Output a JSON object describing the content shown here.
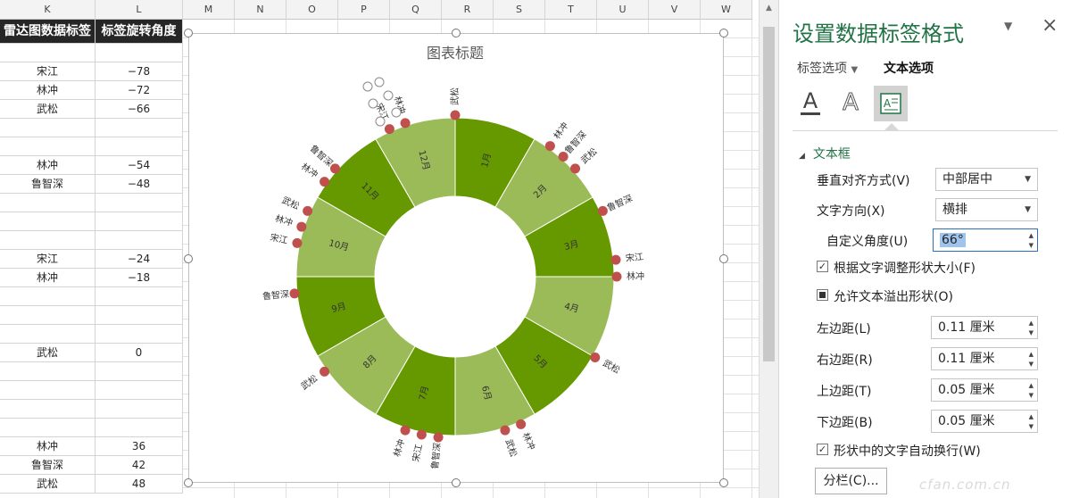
{
  "sheet": {
    "columns": [
      "K",
      "L",
      "M",
      "N",
      "O",
      "P",
      "Q",
      "R",
      "S",
      "T",
      "U",
      "V",
      "W"
    ],
    "header_k": "雷达图数据标签",
    "header_l": "标签旋转角度",
    "rows": [
      {
        "k": "",
        "l": ""
      },
      {
        "k": "宋江",
        "l": "−78"
      },
      {
        "k": "林冲",
        "l": "−72"
      },
      {
        "k": "武松",
        "l": "−66"
      },
      {
        "k": "",
        "l": ""
      },
      {
        "k": "",
        "l": ""
      },
      {
        "k": "林冲",
        "l": "−54"
      },
      {
        "k": "鲁智深",
        "l": "−48"
      },
      {
        "k": "",
        "l": ""
      },
      {
        "k": "",
        "l": ""
      },
      {
        "k": "",
        "l": ""
      },
      {
        "k": "宋江",
        "l": "−24"
      },
      {
        "k": "林冲",
        "l": "−18"
      },
      {
        "k": "",
        "l": ""
      },
      {
        "k": "",
        "l": ""
      },
      {
        "k": "",
        "l": ""
      },
      {
        "k": "武松",
        "l": "0"
      },
      {
        "k": "",
        "l": ""
      },
      {
        "k": "",
        "l": ""
      },
      {
        "k": "",
        "l": ""
      },
      {
        "k": "",
        "l": ""
      },
      {
        "k": "林冲",
        "l": "36"
      },
      {
        "k": "鲁智深",
        "l": "42"
      },
      {
        "k": "武松",
        "l": "48"
      }
    ]
  },
  "chart": {
    "title": "图表标题",
    "months": [
      "1月",
      "2月",
      "3月",
      "4月",
      "5月",
      "6月",
      "7月",
      "8月",
      "9月",
      "10月",
      "11月",
      "12月"
    ],
    "colors": {
      "dark": "#669900",
      "light": "#9bbb59",
      "dot": "#c0504d"
    },
    "labels": [
      {
        "text": "宋江",
        "deg": -78
      },
      {
        "text": "林冲",
        "deg": -72
      },
      {
        "text": "武松",
        "deg": -66
      },
      {
        "text": "林冲",
        "deg": -54
      },
      {
        "text": "鲁智深",
        "deg": -48
      },
      {
        "text": "宋江",
        "deg": -24
      },
      {
        "text": "林冲",
        "deg": -18
      },
      {
        "text": "武松",
        "deg": 0
      },
      {
        "text": "林冲",
        "deg": 36
      },
      {
        "text": "鲁智深",
        "deg": 42
      },
      {
        "text": "武松",
        "deg": 48
      },
      {
        "text": "鲁智深",
        "deg": 66
      },
      {
        "text": "宋江",
        "deg": 84
      },
      {
        "text": "林冲",
        "deg": 90
      },
      {
        "text": "武松",
        "deg": 120
      },
      {
        "text": "林冲",
        "deg": 156
      },
      {
        "text": "武松",
        "deg": 162
      },
      {
        "text": "鲁智深",
        "deg": 186
      },
      {
        "text": "宋江",
        "deg": 192
      },
      {
        "text": "林冲",
        "deg": 198
      },
      {
        "text": "武松",
        "deg": 234
      },
      {
        "text": "鲁智深",
        "deg": 264
      }
    ]
  },
  "pane": {
    "title": "设置数据标签格式",
    "tab_label_options": "标签选项",
    "tab_text_options": "文本选项",
    "section": "文本框",
    "vertical_align_label": "垂直对齐方式(V)",
    "vertical_align_value": "中部居中",
    "text_direction_label": "文字方向(X)",
    "text_direction_value": "横排",
    "custom_angle_label": "自定义角度(U)",
    "custom_angle_value": "66°",
    "resize_label": "根据文字调整形状大小(F)",
    "overflow_label": "允许文本溢出形状(O)",
    "left_margin_label": "左边距(L)",
    "left_margin_value": "0.11 厘米",
    "right_margin_label": "右边距(R)",
    "right_margin_value": "0.11 厘米",
    "top_margin_label": "上边距(T)",
    "top_margin_value": "0.05 厘米",
    "bottom_margin_label": "下边距(B)",
    "bottom_margin_value": "0.05 厘米",
    "wrap_label": "形状中的文字自动换行(W)",
    "columns_button": "分栏(C)...",
    "watermark": "cfan.com.cn"
  }
}
